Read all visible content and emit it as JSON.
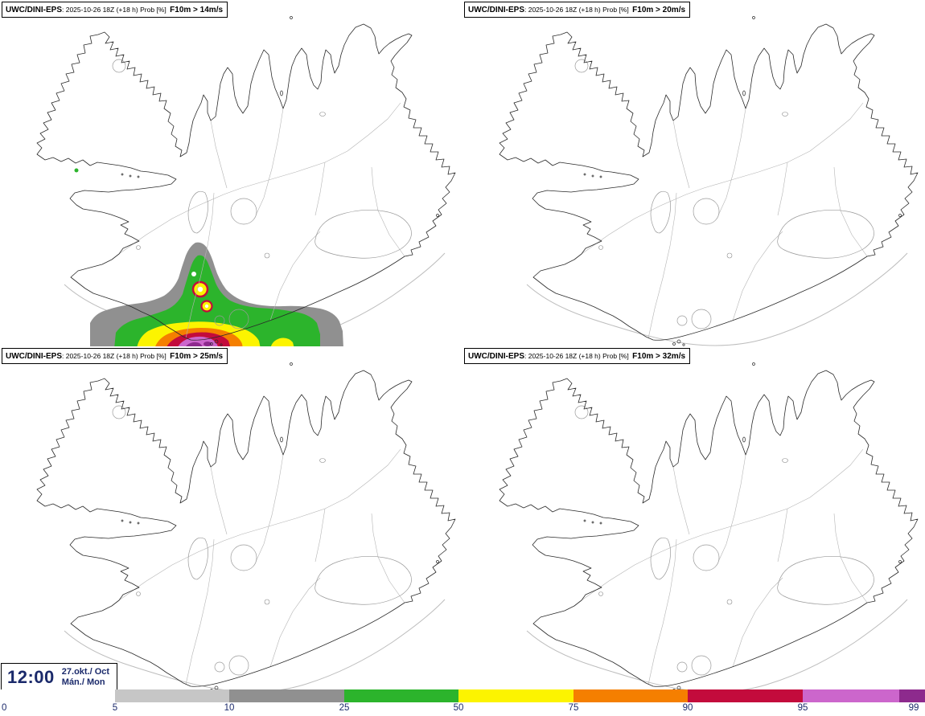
{
  "panels": [
    {
      "model": "UWC/DINI-EPS",
      "meta": ": 2025-10-26 18Z (+18 h) Prob [%]",
      "param": "F10m > 14m/s"
    },
    {
      "model": "UWC/DINI-EPS",
      "meta": ": 2025-10-26 18Z (+18 h) Prob [%]",
      "param": "F10m > 20m/s"
    },
    {
      "model": "UWC/DINI-EPS",
      "meta": ": 2025-10-26 18Z (+18 h) Prob [%]",
      "param": "F10m > 25m/s"
    },
    {
      "model": "UWC/DINI-EPS",
      "meta": ": 2025-10-26 18Z (+18 h) Prob [%]",
      "param": "F10m > 32m/s"
    }
  ],
  "timebox": {
    "time": "12:00",
    "date": "27.okt./ Oct",
    "weekday": "Mán./ Mon",
    "text_color": "#1b2a6b"
  },
  "colorbar": {
    "labels": [
      "0",
      "5",
      "10",
      "25",
      "50",
      "75",
      "90",
      "95",
      "99"
    ],
    "label_color": "#1b2a6b",
    "segments": [
      {
        "from": 0,
        "to": 5,
        "color_key": "white"
      },
      {
        "from": 5,
        "to": 10,
        "color_key": "lightgray"
      },
      {
        "from": 10,
        "to": 25,
        "color_key": "gray"
      },
      {
        "from": 25,
        "to": 50,
        "color_key": "green"
      },
      {
        "from": 50,
        "to": 75,
        "color_key": "yellow"
      },
      {
        "from": 75,
        "to": 90,
        "color_key": "orange"
      },
      {
        "from": 90,
        "to": 95,
        "color_key": "red"
      },
      {
        "from": 95,
        "to": 99,
        "color_key": "magenta"
      },
      {
        "from": 99,
        "to": 100,
        "color_key": "purple"
      }
    ]
  },
  "palette": {
    "white": "#ffffff",
    "lightgray": "#c6c6c6",
    "gray": "#909090",
    "green": "#2cb42c",
    "yellow": "#fcf400",
    "orange": "#f57f00",
    "red": "#c30b3c",
    "magenta": "#cc66cc",
    "purple": "#8d2a8d"
  }
}
